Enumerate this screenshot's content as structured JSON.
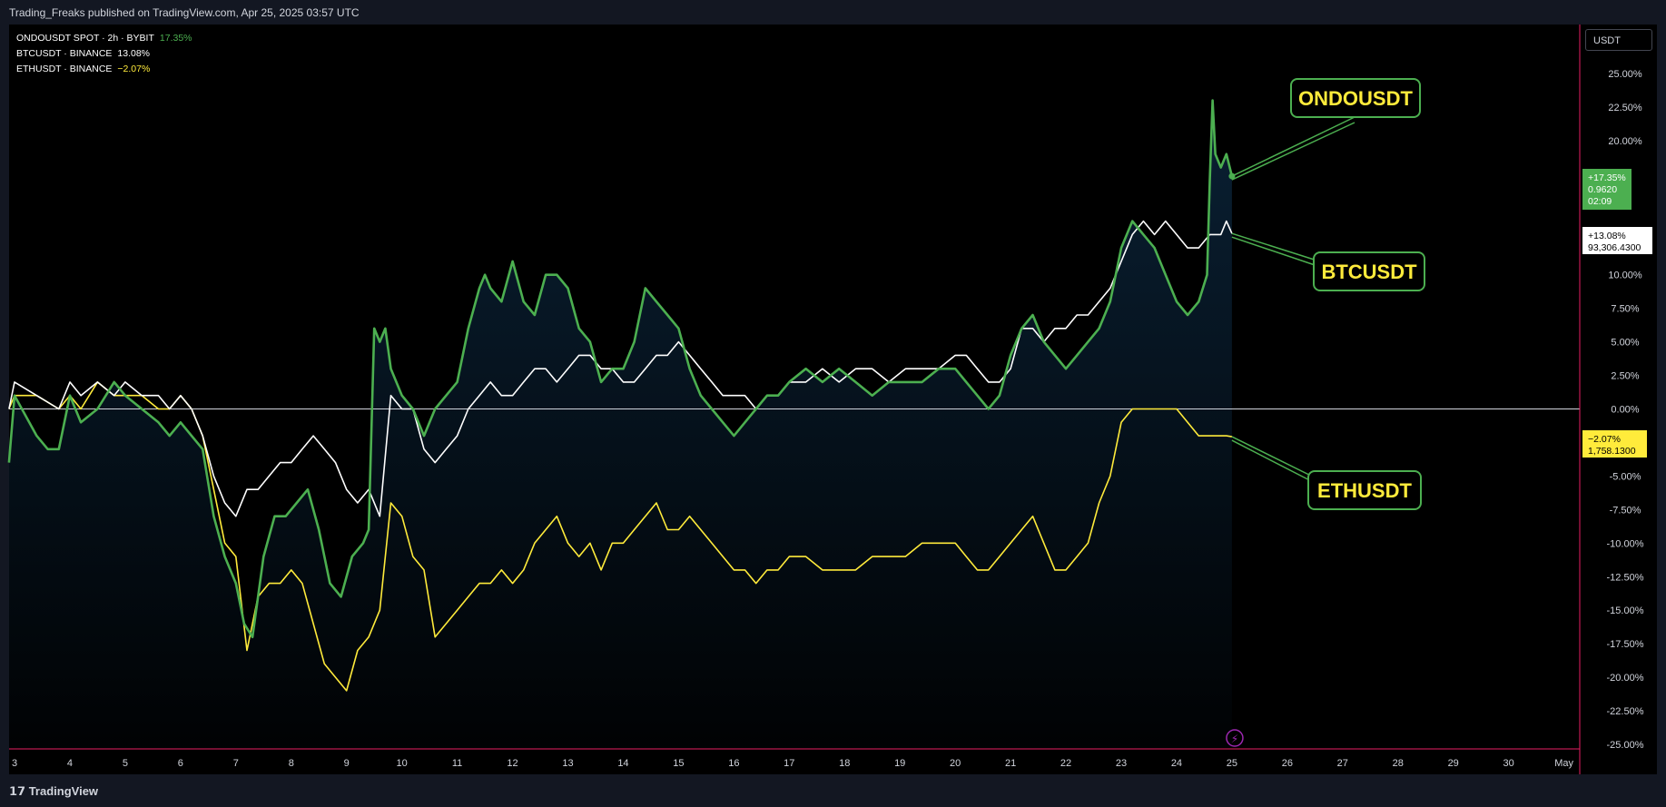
{
  "header": {
    "publisher_line": "Trading_Freaks published on TradingView.com, Apr 25, 2025 03:57 UTC"
  },
  "footer": {
    "logo_text": "TradingView"
  },
  "currency_button": "USDT",
  "legend": [
    {
      "label": "ONDOUSDT SPOT · 2h · BYBIT",
      "value": "17.35%"
    },
    {
      "label": "BTCUSDT · BINANCE",
      "value": "13.08%"
    },
    {
      "label": "ETHUSDT · BINANCE",
      "value": "−2.07%"
    }
  ],
  "colors": {
    "ondo": "#4caf50",
    "btc": "#ffffff",
    "eth": "#ffeb3b",
    "annotation_border": "#4caf50",
    "annotation_text": "#ffeb3b",
    "time_axis_line": "#e91e63"
  },
  "chart_data": {
    "type": "line",
    "x_unit": "day (April 2025)",
    "y_unit": "percent change",
    "ylim": [
      -25,
      25
    ],
    "y_ticks": [
      25,
      22.5,
      20,
      17.5,
      15,
      12.5,
      10,
      7.5,
      5,
      2.5,
      0,
      -2.5,
      -5,
      -7.5,
      -10,
      -12.5,
      -15,
      -17.5,
      -20,
      -22.5,
      -25
    ],
    "y_tick_labels": [
      "25.00%",
      "22.50%",
      "20.00%",
      "",
      "",
      "",
      "10.00%",
      "7.50%",
      "5.00%",
      "2.50%",
      "0.00%",
      "",
      "-5.00%",
      "-7.50%",
      "-10.00%",
      "-12.50%",
      "-15.00%",
      "-17.50%",
      "-20.00%",
      "-22.50%",
      "-25.00%"
    ],
    "xlim": [
      2.9,
      31.2
    ],
    "x_ticks": [
      {
        "x": 3,
        "label": "3"
      },
      {
        "x": 4,
        "label": "4"
      },
      {
        "x": 5,
        "label": "5"
      },
      {
        "x": 6,
        "label": "6"
      },
      {
        "x": 7,
        "label": "7"
      },
      {
        "x": 8,
        "label": "8"
      },
      {
        "x": 9,
        "label": "9"
      },
      {
        "x": 10,
        "label": "10"
      },
      {
        "x": 11,
        "label": "11"
      },
      {
        "x": 12,
        "label": "12"
      },
      {
        "x": 13,
        "label": "13"
      },
      {
        "x": 14,
        "label": "14"
      },
      {
        "x": 15,
        "label": "15"
      },
      {
        "x": 16,
        "label": "16"
      },
      {
        "x": 17,
        "label": "17"
      },
      {
        "x": 18,
        "label": "18"
      },
      {
        "x": 19,
        "label": "19"
      },
      {
        "x": 20,
        "label": "20"
      },
      {
        "x": 21,
        "label": "21"
      },
      {
        "x": 22,
        "label": "22"
      },
      {
        "x": 23,
        "label": "23"
      },
      {
        "x": 24,
        "label": "24"
      },
      {
        "x": 25,
        "label": "25"
      },
      {
        "x": 26,
        "label": "26"
      },
      {
        "x": 27,
        "label": "27"
      },
      {
        "x": 28,
        "label": "28"
      },
      {
        "x": 29,
        "label": "29"
      },
      {
        "x": 30,
        "label": "30"
      },
      {
        "x": 31,
        "label": "May"
      }
    ],
    "baseline": 0,
    "series": [
      {
        "key": "ondo",
        "name": "ONDOUSDT",
        "price_label": "0.9620",
        "pct_label": "+17.35%",
        "countdown": "02:09",
        "x": [
          2.9,
          3.0,
          3.4,
          3.6,
          3.8,
          4.0,
          4.2,
          4.5,
          4.8,
          5.0,
          5.3,
          5.6,
          5.8,
          6.0,
          6.2,
          6.4,
          6.6,
          6.8,
          7.0,
          7.15,
          7.3,
          7.5,
          7.7,
          7.9,
          8.1,
          8.3,
          8.5,
          8.7,
          8.9,
          9.1,
          9.3,
          9.4,
          9.5,
          9.6,
          9.7,
          9.8,
          10.0,
          10.2,
          10.4,
          10.6,
          10.8,
          11.0,
          11.2,
          11.4,
          11.5,
          11.6,
          11.8,
          12.0,
          12.2,
          12.4,
          12.6,
          12.8,
          13.0,
          13.2,
          13.4,
          13.6,
          13.8,
          14.0,
          14.2,
          14.4,
          14.6,
          14.8,
          15.0,
          15.2,
          15.4,
          15.6,
          15.8,
          16.0,
          16.2,
          16.4,
          16.6,
          16.8,
          17.0,
          17.3,
          17.6,
          17.9,
          18.2,
          18.5,
          18.8,
          19.1,
          19.4,
          19.7,
          20.0,
          20.2,
          20.4,
          20.6,
          20.8,
          21.0,
          21.2,
          21.4,
          21.6,
          21.8,
          22.0,
          22.2,
          22.4,
          22.6,
          22.8,
          23.0,
          23.2,
          23.4,
          23.6,
          23.8,
          24.0,
          24.2,
          24.4,
          24.55,
          24.6,
          24.65,
          24.7,
          24.8,
          24.9,
          25.0
        ],
        "values": [
          -4,
          1,
          -2,
          -3,
          -3,
          1,
          -1,
          0,
          2,
          1,
          0,
          -1,
          -2,
          -1,
          -2,
          -3,
          -8,
          -11,
          -13,
          -16,
          -17,
          -11,
          -8,
          -8,
          -7,
          -6,
          -9,
          -13,
          -14,
          -11,
          -10,
          -9,
          6,
          5,
          6,
          3,
          1,
          0,
          -2,
          0,
          1,
          2,
          6,
          9,
          10,
          9,
          8,
          11,
          8,
          7,
          10,
          10,
          9,
          6,
          5,
          2,
          3,
          3,
          5,
          9,
          8,
          7,
          6,
          3,
          1,
          0,
          -1,
          -2,
          -1,
          0,
          1,
          1,
          2,
          3,
          2,
          3,
          2,
          1,
          2,
          2,
          2,
          3,
          3,
          2,
          1,
          0,
          1,
          4,
          6,
          7,
          5,
          4,
          3,
          4,
          5,
          6,
          8,
          12,
          14,
          13,
          12,
          10,
          8,
          7,
          8,
          10,
          17,
          23,
          19,
          18,
          19,
          17.35
        ]
      },
      {
        "key": "btc",
        "name": "BTCUSDT",
        "price_label": "93,306.4300",
        "pct_label": "+13.08%",
        "x": [
          2.9,
          3.0,
          3.4,
          3.8,
          4.0,
          4.2,
          4.5,
          4.8,
          5.0,
          5.3,
          5.6,
          5.8,
          6.0,
          6.2,
          6.4,
          6.6,
          6.8,
          7.0,
          7.2,
          7.4,
          7.6,
          7.8,
          8.0,
          8.2,
          8.4,
          8.6,
          8.8,
          9.0,
          9.2,
          9.4,
          9.6,
          9.8,
          10.0,
          10.2,
          10.4,
          10.6,
          10.8,
          11.0,
          11.2,
          11.4,
          11.6,
          11.8,
          12.0,
          12.2,
          12.4,
          12.6,
          12.8,
          13.0,
          13.2,
          13.4,
          13.6,
          13.8,
          14.0,
          14.2,
          14.4,
          14.6,
          14.8,
          15.0,
          15.2,
          15.4,
          15.6,
          15.8,
          16.0,
          16.2,
          16.4,
          16.6,
          16.8,
          17.0,
          17.3,
          17.6,
          17.9,
          18.2,
          18.5,
          18.8,
          19.1,
          19.4,
          19.7,
          20.0,
          20.2,
          20.4,
          20.6,
          20.8,
          21.0,
          21.2,
          21.4,
          21.6,
          21.8,
          22.0,
          22.2,
          22.4,
          22.6,
          22.8,
          23.0,
          23.2,
          23.4,
          23.6,
          23.8,
          24.0,
          24.2,
          24.4,
          24.6,
          24.8,
          24.9,
          25.0
        ],
        "values": [
          0,
          2,
          1,
          0,
          2,
          1,
          2,
          1,
          2,
          1,
          1,
          0,
          1,
          0,
          -2,
          -5,
          -7,
          -8,
          -6,
          -6,
          -5,
          -4,
          -4,
          -3,
          -2,
          -3,
          -4,
          -6,
          -7,
          -6,
          -8,
          1,
          0,
          0,
          -3,
          -4,
          -3,
          -2,
          0,
          1,
          2,
          1,
          1,
          2,
          3,
          3,
          2,
          3,
          4,
          4,
          3,
          3,
          2,
          2,
          3,
          4,
          4,
          5,
          4,
          3,
          2,
          1,
          1,
          1,
          0,
          1,
          1,
          2,
          2,
          3,
          2,
          3,
          3,
          2,
          3,
          3,
          3,
          4,
          4,
          3,
          2,
          2,
          3,
          6,
          6,
          5,
          6,
          6,
          7,
          7,
          8,
          9,
          11,
          13,
          14,
          13,
          14,
          13,
          12,
          12,
          13,
          13,
          14,
          13.08
        ]
      },
      {
        "key": "eth",
        "name": "ETHUSDT",
        "price_label": "1,758.1300",
        "pct_label": "−2.07%",
        "x": [
          2.9,
          3.0,
          3.4,
          3.8,
          4.0,
          4.2,
          4.5,
          4.8,
          5.0,
          5.3,
          5.6,
          5.8,
          6.0,
          6.2,
          6.4,
          6.6,
          6.8,
          7.0,
          7.2,
          7.4,
          7.6,
          7.8,
          8.0,
          8.2,
          8.4,
          8.6,
          8.8,
          9.0,
          9.2,
          9.4,
          9.6,
          9.8,
          10.0,
          10.2,
          10.4,
          10.6,
          10.8,
          11.0,
          11.2,
          11.4,
          11.6,
          11.8,
          12.0,
          12.2,
          12.4,
          12.6,
          12.8,
          13.0,
          13.2,
          13.4,
          13.6,
          13.8,
          14.0,
          14.2,
          14.4,
          14.6,
          14.8,
          15.0,
          15.2,
          15.4,
          15.6,
          15.8,
          16.0,
          16.2,
          16.4,
          16.6,
          16.8,
          17.0,
          17.3,
          17.6,
          17.9,
          18.2,
          18.5,
          18.8,
          19.1,
          19.4,
          19.7,
          20.0,
          20.2,
          20.4,
          20.6,
          20.8,
          21.0,
          21.2,
          21.4,
          21.6,
          21.8,
          22.0,
          22.2,
          22.4,
          22.6,
          22.8,
          23.0,
          23.2,
          23.4,
          23.6,
          23.8,
          24.0,
          24.2,
          24.4,
          24.6,
          24.8,
          24.9,
          25.0
        ],
        "values": [
          0,
          1,
          1,
          0,
          1,
          0,
          2,
          1,
          1,
          1,
          0,
          0,
          1,
          0,
          -2,
          -6,
          -10,
          -11,
          -18,
          -14,
          -13,
          -13,
          -12,
          -13,
          -16,
          -19,
          -20,
          -21,
          -18,
          -17,
          -15,
          -7,
          -8,
          -11,
          -12,
          -17,
          -16,
          -15,
          -14,
          -13,
          -13,
          -12,
          -13,
          -12,
          -10,
          -9,
          -8,
          -10,
          -11,
          -10,
          -12,
          -10,
          -10,
          -9,
          -8,
          -7,
          -9,
          -9,
          -8,
          -9,
          -10,
          -11,
          -12,
          -12,
          -13,
          -12,
          -12,
          -11,
          -11,
          -12,
          -12,
          -12,
          -11,
          -11,
          -11,
          -10,
          -10,
          -10,
          -11,
          -12,
          -12,
          -11,
          -10,
          -9,
          -8,
          -10,
          -12,
          -12,
          -11,
          -10,
          -7,
          -5,
          -1,
          0,
          0,
          0,
          0,
          0,
          -1,
          -2,
          -2,
          -2,
          -2,
          -2.07
        ]
      }
    ],
    "annotations": [
      {
        "series": "ondo",
        "text": "ONDOUSDT"
      },
      {
        "series": "btc",
        "text": "BTCUSDT"
      },
      {
        "series": "eth",
        "text": "ETHUSDT"
      }
    ]
  }
}
